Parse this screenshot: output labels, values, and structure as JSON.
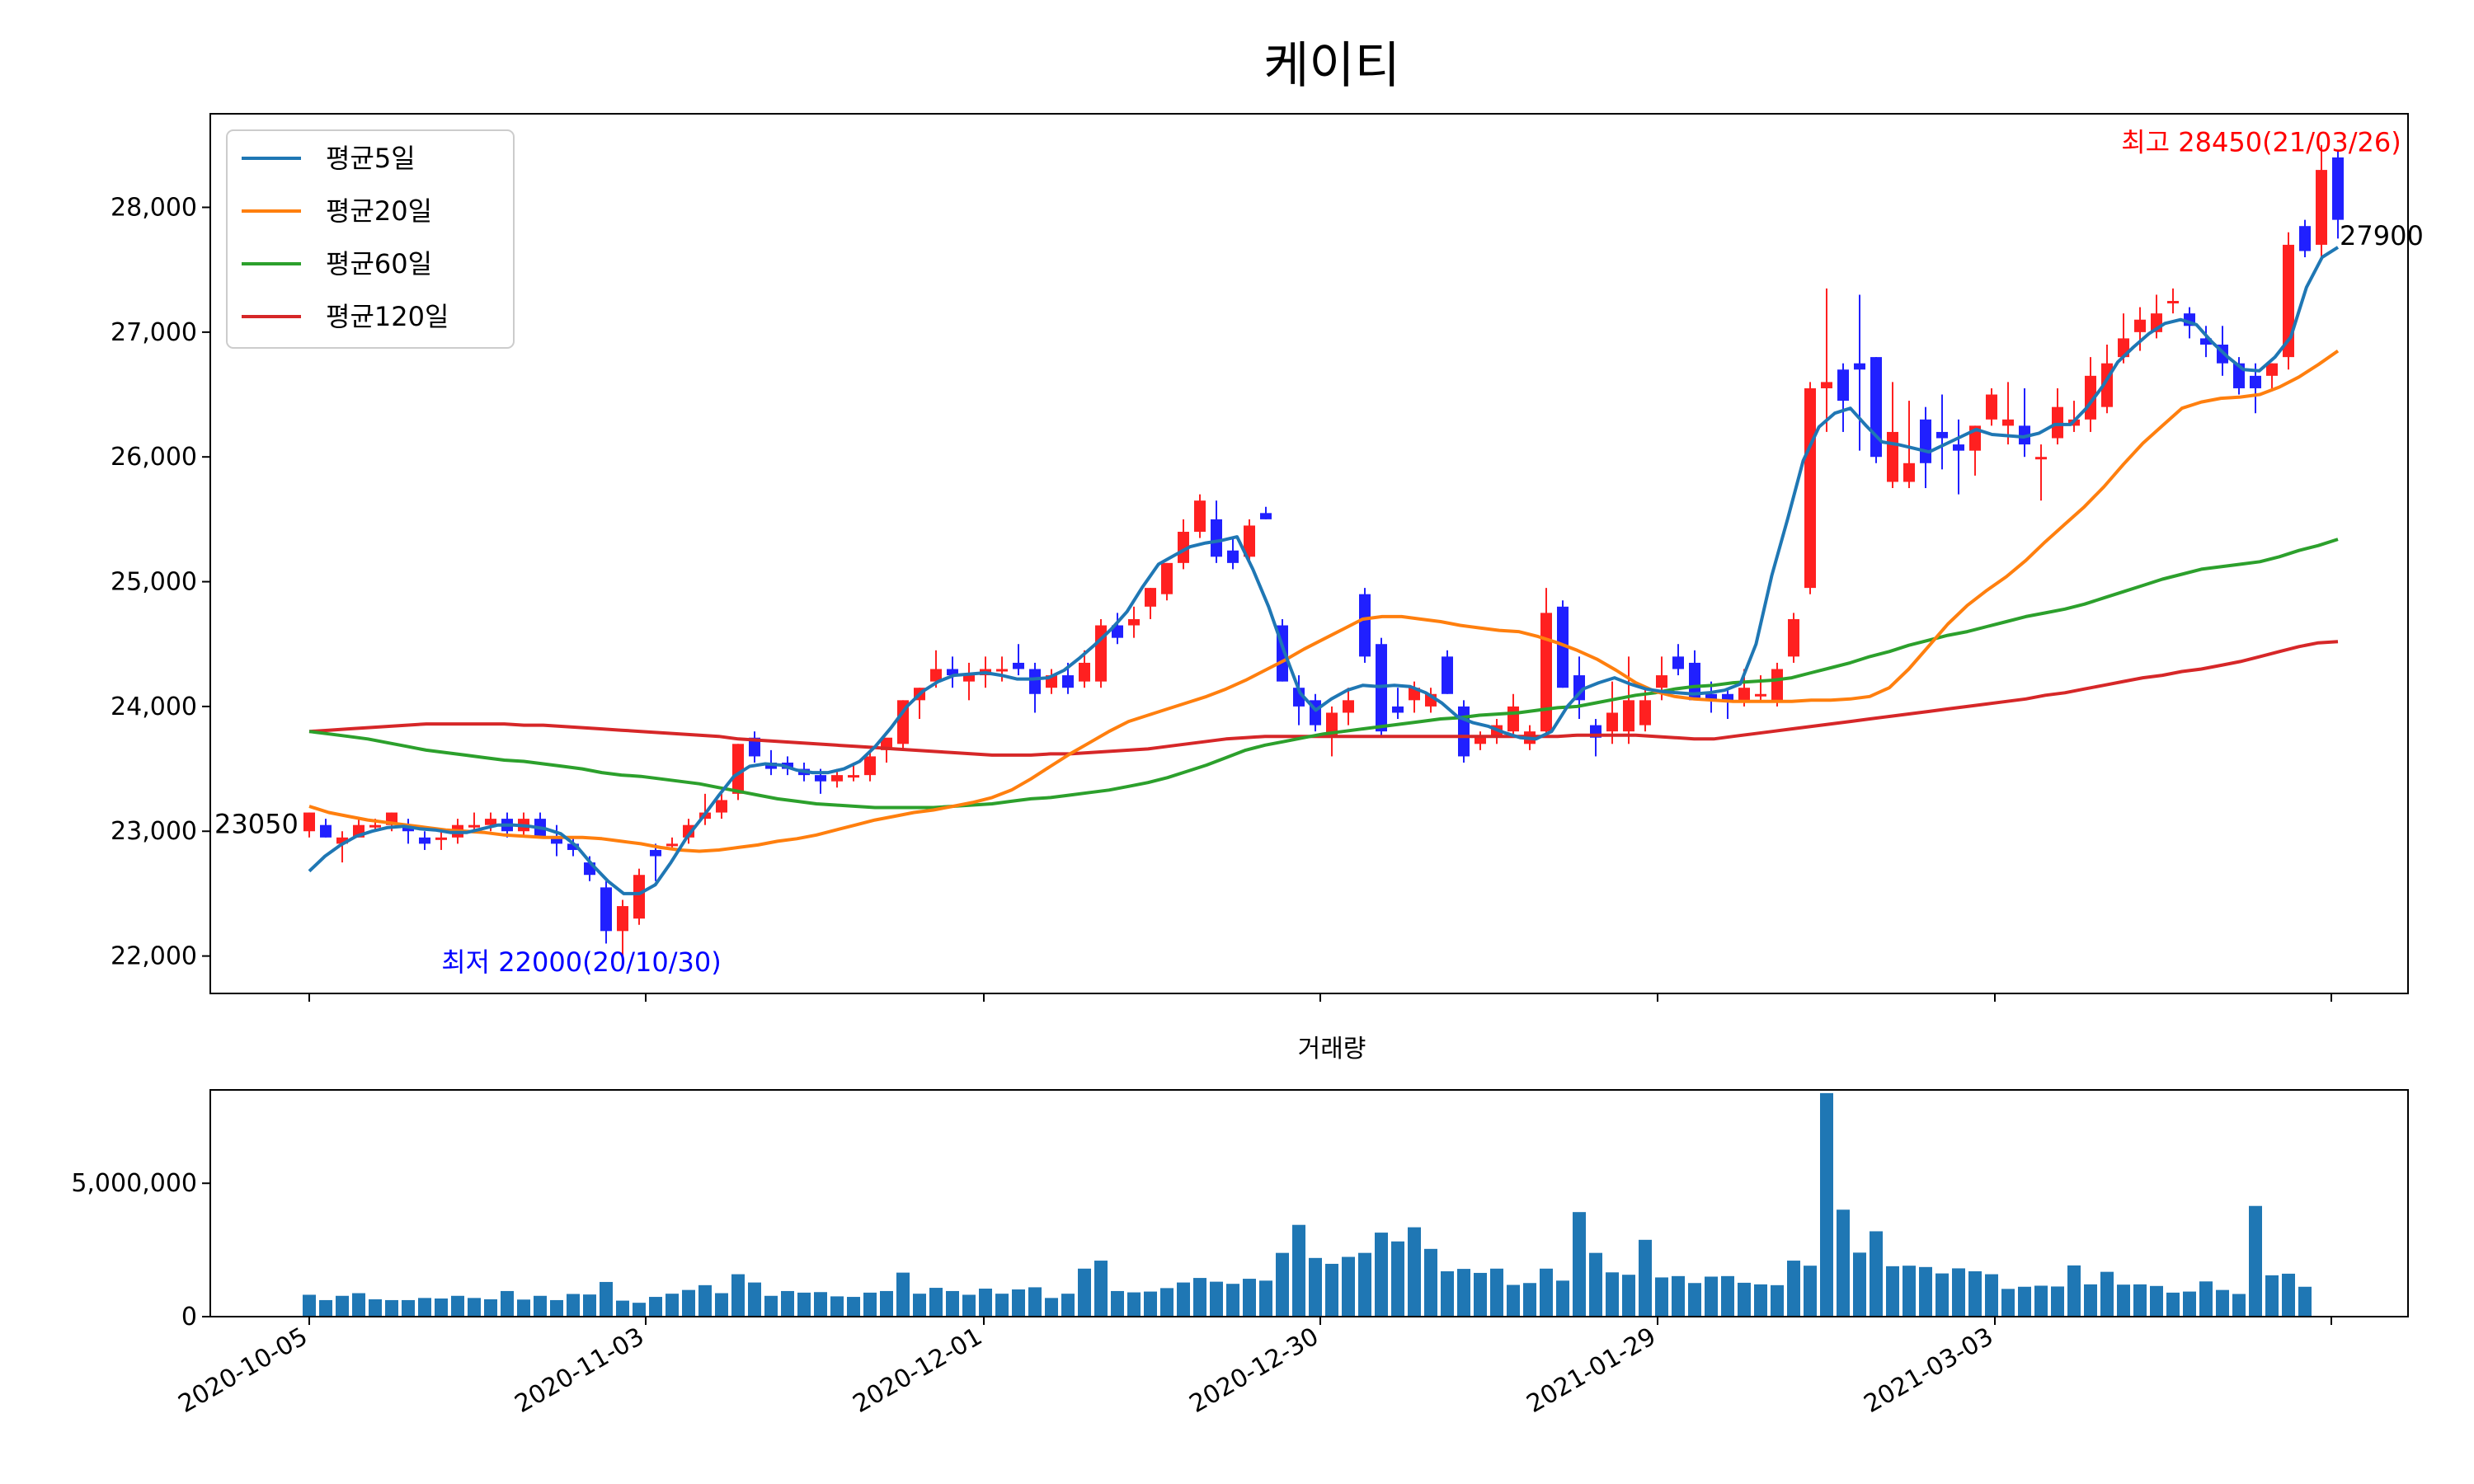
{
  "title": "케이티",
  "volume_title": "거래량",
  "chart_data": [
    {
      "type": "candlestick",
      "title": "케이티",
      "ylim": [
        21700,
        28750
      ],
      "yticks": [
        22000,
        23000,
        24000,
        25000,
        26000,
        27000,
        28000
      ],
      "ytick_labels": [
        "22,000",
        "23,000",
        "24,000",
        "25,000",
        "26,000",
        "27,000",
        "28,000"
      ],
      "grid": false,
      "legend_position": "top-left",
      "legend": [
        "평균5일",
        "평균20일",
        "평균60일",
        "평균120일"
      ],
      "colors": {
        "up": "#ff2020",
        "down": "#2020ff",
        "ma5": "#1f77b4",
        "ma20": "#ff7f0e",
        "ma60": "#2ca02c",
        "ma120": "#d62728",
        "low_text": "#0000ff",
        "high_text": "#ff0000"
      },
      "annotations": {
        "start_label": "23050",
        "low_label": "최저 22000(20/10/30)",
        "high_label": "최고 28450(21/03/26)",
        "last_label": "27900"
      },
      "candles": [
        [
          23000,
          23150,
          22950,
          23150
        ],
        [
          23050,
          23100,
          22950,
          22950
        ],
        [
          22900,
          23000,
          22750,
          22950
        ],
        [
          22950,
          23100,
          22950,
          23050
        ],
        [
          23050,
          23100,
          23000,
          23050
        ],
        [
          23050,
          23150,
          23000,
          23150
        ],
        [
          23050,
          23100,
          22900,
          23000
        ],
        [
          22950,
          23000,
          22850,
          22900
        ],
        [
          22950,
          23000,
          22850,
          22950
        ],
        [
          22950,
          23100,
          22900,
          23050
        ],
        [
          23050,
          23150,
          23000,
          23050
        ],
        [
          23050,
          23150,
          23000,
          23100
        ],
        [
          23100,
          23150,
          22950,
          23000
        ],
        [
          23000,
          23150,
          22950,
          23100
        ],
        [
          23100,
          23150,
          22950,
          22950
        ],
        [
          22950,
          23050,
          22800,
          22900
        ],
        [
          22900,
          22950,
          22800,
          22850
        ],
        [
          22750,
          22800,
          22600,
          22650
        ],
        [
          22550,
          22600,
          22100,
          22200
        ],
        [
          22200,
          22450,
          22000,
          22400
        ],
        [
          22300,
          22700,
          22250,
          22650
        ],
        [
          22850,
          22900,
          22600,
          22800
        ],
        [
          22900,
          22950,
          22850,
          22900
        ],
        [
          22950,
          23100,
          22900,
          23050
        ],
        [
          23100,
          23300,
          23050,
          23150
        ],
        [
          23150,
          23300,
          23100,
          23250
        ],
        [
          23300,
          23700,
          23250,
          23700
        ],
        [
          23750,
          23800,
          23550,
          23600
        ],
        [
          23550,
          23650,
          23450,
          23500
        ],
        [
          23550,
          23600,
          23450,
          23500
        ],
        [
          23500,
          23550,
          23400,
          23450
        ],
        [
          23450,
          23500,
          23300,
          23400
        ],
        [
          23400,
          23500,
          23350,
          23450
        ],
        [
          23450,
          23550,
          23400,
          23450
        ],
        [
          23450,
          23650,
          23400,
          23600
        ],
        [
          23650,
          23700,
          23550,
          23750
        ],
        [
          23700,
          24050,
          23650,
          24050
        ],
        [
          24050,
          24150,
          23900,
          24150
        ],
        [
          24200,
          24450,
          24150,
          24300
        ],
        [
          24300,
          24400,
          24150,
          24250
        ],
        [
          24200,
          24350,
          24050,
          24250
        ],
        [
          24250,
          24400,
          24150,
          24300
        ],
        [
          24300,
          24400,
          24200,
          24300
        ],
        [
          24350,
          24500,
          24250,
          24300
        ],
        [
          24300,
          24350,
          23950,
          24100
        ],
        [
          24150,
          24300,
          24100,
          24250
        ],
        [
          24250,
          24350,
          24100,
          24150
        ],
        [
          24200,
          24450,
          24150,
          24350
        ],
        [
          24200,
          24700,
          24150,
          24650
        ],
        [
          24650,
          24750,
          24500,
          24550
        ],
        [
          24650,
          24800,
          24550,
          24700
        ],
        [
          24800,
          24950,
          24700,
          24950
        ],
        [
          24900,
          25150,
          24850,
          25150
        ],
        [
          25150,
          25500,
          25100,
          25400
        ],
        [
          25400,
          25700,
          25350,
          25650
        ],
        [
          25500,
          25650,
          25150,
          25200
        ],
        [
          25250,
          25350,
          25100,
          25150
        ],
        [
          25200,
          25500,
          25150,
          25450
        ],
        [
          25550,
          25600,
          25500,
          25500
        ],
        [
          24650,
          24700,
          24200,
          24200
        ],
        [
          24150,
          24250,
          23850,
          24000
        ],
        [
          24050,
          24100,
          23800,
          23850
        ],
        [
          23750,
          24000,
          23600,
          23950
        ],
        [
          23950,
          24150,
          23850,
          24050
        ],
        [
          24900,
          24950,
          24350,
          24400
        ],
        [
          24500,
          24550,
          23750,
          23800
        ],
        [
          24000,
          24150,
          23900,
          23950
        ],
        [
          24050,
          24200,
          23950,
          24150
        ],
        [
          24000,
          24150,
          23950,
          24100
        ],
        [
          24400,
          24450,
          24100,
          24100
        ],
        [
          24000,
          24050,
          23550,
          23600
        ],
        [
          23700,
          23800,
          23650,
          23750
        ],
        [
          23750,
          23900,
          23700,
          23850
        ],
        [
          23800,
          24100,
          23750,
          24000
        ],
        [
          23700,
          23850,
          23650,
          23800
        ],
        [
          23800,
          24950,
          23750,
          24750
        ],
        [
          24800,
          24850,
          24150,
          24150
        ],
        [
          24250,
          24400,
          23900,
          24050
        ],
        [
          23850,
          23900,
          23600,
          23750
        ],
        [
          23800,
          24200,
          23700,
          23950
        ],
        [
          23800,
          24400,
          23700,
          24050
        ],
        [
          23850,
          24150,
          23800,
          24050
        ],
        [
          24150,
          24400,
          24050,
          24250
        ],
        [
          24400,
          24500,
          24250,
          24300
        ],
        [
          24350,
          24450,
          24050,
          24050
        ],
        [
          24100,
          24200,
          23950,
          24050
        ],
        [
          24100,
          24150,
          23900,
          24050
        ],
        [
          24050,
          24300,
          24000,
          24150
        ],
        [
          24100,
          24250,
          24050,
          24100
        ],
        [
          24050,
          24350,
          24000,
          24300
        ],
        [
          24400,
          24750,
          24350,
          24700
        ],
        [
          24950,
          26600,
          24900,
          26550
        ],
        [
          26550,
          27350,
          26200,
          26600
        ],
        [
          26700,
          26750,
          26200,
          26450
        ],
        [
          26750,
          27300,
          26050,
          26700
        ],
        [
          26800,
          26800,
          25950,
          26000
        ],
        [
          25800,
          26600,
          25750,
          26200
        ],
        [
          25800,
          26450,
          25750,
          25950
        ],
        [
          26300,
          26400,
          25750,
          25950
        ],
        [
          26200,
          26500,
          25900,
          26150
        ],
        [
          26100,
          26300,
          25700,
          26050
        ],
        [
          26050,
          26250,
          25850,
          26250
        ],
        [
          26300,
          26550,
          26250,
          26500
        ],
        [
          26250,
          26600,
          26100,
          26300
        ],
        [
          26250,
          26550,
          26000,
          26100
        ],
        [
          26000,
          26100,
          25650,
          26000
        ],
        [
          26150,
          26550,
          26100,
          26400
        ],
        [
          26250,
          26450,
          26200,
          26300
        ],
        [
          26300,
          26800,
          26200,
          26650
        ],
        [
          26400,
          26900,
          26350,
          26750
        ],
        [
          26800,
          27150,
          26750,
          26950
        ],
        [
          27000,
          27200,
          26850,
          27100
        ],
        [
          27000,
          27300,
          26950,
          27150
        ],
        [
          27250,
          27350,
          27150,
          27250
        ],
        [
          27150,
          27200,
          26950,
          27050
        ],
        [
          26950,
          27050,
          26800,
          26900
        ],
        [
          26900,
          27050,
          26650,
          26750
        ],
        [
          26750,
          26800,
          26500,
          26550
        ],
        [
          26650,
          26750,
          26350,
          26550
        ],
        [
          26650,
          26750,
          26550,
          26750
        ],
        [
          26800,
          27800,
          26700,
          27700
        ],
        [
          27850,
          27900,
          27600,
          27650
        ],
        [
          27700,
          28500,
          27600,
          28300
        ],
        [
          28400,
          28450,
          27750,
          27900
        ]
      ],
      "ma5": [
        22680,
        22800,
        22890,
        22960,
        23000,
        23030,
        23040,
        23020,
        23010,
        22990,
        22990,
        23020,
        23050,
        23050,
        23040,
        23020,
        22980,
        22880,
        22730,
        22600,
        22500,
        22500,
        22570,
        22750,
        22950,
        23110,
        23280,
        23440,
        23520,
        23540,
        23530,
        23490,
        23470,
        23470,
        23500,
        23560,
        23680,
        23830,
        24000,
        24120,
        24200,
        24250,
        24260,
        24270,
        24250,
        24220,
        24220,
        24230,
        24290,
        24390,
        24500,
        24620,
        24760,
        24960,
        25140,
        25210,
        25280,
        25310,
        25330,
        25360,
        25100,
        24800,
        24440,
        24110,
        23970,
        24060,
        24130,
        24170,
        24160,
        24170,
        24160,
        24110,
        24030,
        23920,
        23870,
        23840,
        23790,
        23750,
        23740,
        23800,
        24000,
        24140,
        24190,
        24230,
        24180,
        24140,
        24120,
        24110,
        24100,
        24110,
        24130,
        24180,
        24500,
        25050,
        25500,
        25970,
        26240,
        26350,
        26390,
        26250,
        26120,
        26100,
        26070,
        26040,
        26100,
        26160,
        26220,
        26180,
        26170,
        26160,
        26190,
        26260,
        26260,
        26390,
        26560,
        26760,
        26880,
        26990,
        27070,
        27100,
        27060,
        26920,
        26800,
        26700,
        26690,
        26800,
        26960,
        27360,
        27600,
        27680
      ]
    },
    {
      "type": "bar",
      "title": "거래량",
      "ylim": [
        0,
        8500000
      ],
      "yticks": [
        0,
        5000000
      ],
      "ytick_labels": [
        "0",
        "5,000,000"
      ],
      "bar_color": "#1f77b4",
      "x_ticks": [
        "2020-10-05",
        "2020-11-03",
        "2020-12-01",
        "2020-12-30",
        "2021-01-29",
        "2021-03-03"
      ]
    }
  ],
  "volume_values": [
    820000,
    620000,
    780000,
    880000,
    650000,
    620000,
    620000,
    700000,
    680000,
    780000,
    700000,
    650000,
    960000,
    640000,
    780000,
    620000,
    850000,
    830000,
    1300000,
    600000,
    520000,
    740000,
    860000,
    1000000,
    1180000,
    880000,
    1590000,
    1280000,
    780000,
    960000,
    900000,
    920000,
    760000,
    740000,
    900000,
    960000,
    1650000,
    860000,
    1080000,
    960000,
    820000,
    1050000,
    860000,
    1020000,
    1100000,
    700000,
    860000,
    1800000,
    2100000,
    960000,
    910000,
    940000,
    1070000,
    1280000,
    1450000,
    1310000,
    1230000,
    1420000,
    1350000,
    2390000,
    3440000,
    2200000,
    1980000,
    2240000,
    2390000,
    3150000,
    2820000,
    3350000,
    2540000,
    1700000,
    1790000,
    1640000,
    1800000,
    1190000,
    1260000,
    1800000,
    1350000,
    3920000,
    2390000,
    1660000,
    1570000,
    2880000,
    1470000,
    1520000,
    1260000,
    1500000,
    1520000,
    1270000,
    1210000,
    1180000,
    2100000,
    1910000,
    8380000,
    4010000,
    2400000,
    3200000,
    1890000,
    1910000,
    1860000,
    1620000,
    1810000,
    1700000,
    1590000,
    1040000,
    1120000,
    1160000,
    1130000,
    1920000,
    1210000,
    1680000,
    1200000,
    1210000,
    1150000,
    900000,
    940000,
    1320000,
    1000000,
    850000,
    4150000,
    1550000,
    1610000,
    1120000
  ],
  "ma20": [
    23200,
    23150,
    23120,
    23090,
    23070,
    23050,
    23030,
    23010,
    23000,
    22990,
    22970,
    22960,
    22950,
    22950,
    22950,
    22940,
    22920,
    22900,
    22870,
    22850,
    22840,
    22850,
    22870,
    22890,
    22920,
    22940,
    22970,
    23010,
    23050,
    23090,
    23120,
    23150,
    23170,
    23200,
    23230,
    23270,
    23330,
    23420,
    23520,
    23620,
    23710,
    23800,
    23880,
    23930,
    23980,
    24030,
    24080,
    24140,
    24210,
    24290,
    24370,
    24460,
    24540,
    24620,
    24700,
    24720,
    24720,
    24700,
    24680,
    24650,
    24630,
    24610,
    24600,
    24560,
    24510,
    24450,
    24380,
    24290,
    24190,
    24120,
    24080,
    24060,
    24050,
    24040,
    24040,
    24040,
    24040,
    24050,
    24050,
    24060,
    24080,
    24150,
    24300,
    24480,
    24660,
    24810,
    24930,
    25040,
    25170,
    25320,
    25460,
    25600,
    25760,
    25940,
    26110,
    26250,
    26390,
    26440,
    26470,
    26480,
    26500,
    26560,
    26640,
    26740,
    26850
  ],
  "ma60": [
    23800,
    23780,
    23760,
    23740,
    23710,
    23680,
    23650,
    23630,
    23610,
    23590,
    23570,
    23560,
    23540,
    23520,
    23500,
    23470,
    23450,
    23440,
    23420,
    23400,
    23380,
    23350,
    23320,
    23290,
    23260,
    23240,
    23220,
    23210,
    23200,
    23190,
    23190,
    23190,
    23190,
    23200,
    23210,
    23220,
    23240,
    23260,
    23270,
    23290,
    23310,
    23330,
    23360,
    23390,
    23430,
    23480,
    23530,
    23590,
    23650,
    23690,
    23720,
    23750,
    23780,
    23800,
    23820,
    23840,
    23860,
    23880,
    23900,
    23910,
    23930,
    23940,
    23950,
    23970,
    23990,
    24000,
    24030,
    24060,
    24090,
    24110,
    24140,
    24160,
    24170,
    24190,
    24200,
    24210,
    24230,
    24270,
    24310,
    24350,
    24400,
    24440,
    24490,
    24530,
    24570,
    24600,
    24640,
    24680,
    24720,
    24750,
    24780,
    24820,
    24870,
    24920,
    24970,
    25020,
    25060,
    25100,
    25120,
    25140,
    25160,
    25200,
    25250,
    25290,
    25340
  ],
  "ma120": [
    23800,
    23810,
    23820,
    23830,
    23840,
    23850,
    23860,
    23860,
    23860,
    23860,
    23860,
    23850,
    23850,
    23840,
    23830,
    23820,
    23810,
    23800,
    23790,
    23780,
    23770,
    23760,
    23740,
    23730,
    23720,
    23710,
    23700,
    23690,
    23680,
    23670,
    23660,
    23650,
    23640,
    23630,
    23620,
    23610,
    23610,
    23610,
    23620,
    23620,
    23630,
    23640,
    23650,
    23660,
    23680,
    23700,
    23720,
    23740,
    23750,
    23760,
    23760,
    23760,
    23760,
    23760,
    23760,
    23760,
    23760,
    23760,
    23760,
    23760,
    23760,
    23760,
    23760,
    23760,
    23760,
    23770,
    23770,
    23770,
    23770,
    23760,
    23750,
    23740,
    23740,
    23760,
    23780,
    23800,
    23820,
    23840,
    23860,
    23880,
    23900,
    23920,
    23940,
    23960,
    23980,
    24000,
    24020,
    24040,
    24060,
    24090,
    24110,
    24140,
    24170,
    24200,
    24230,
    24250,
    24280,
    24300,
    24330,
    24360,
    24400,
    24440,
    24480,
    24510,
    24520
  ]
}
